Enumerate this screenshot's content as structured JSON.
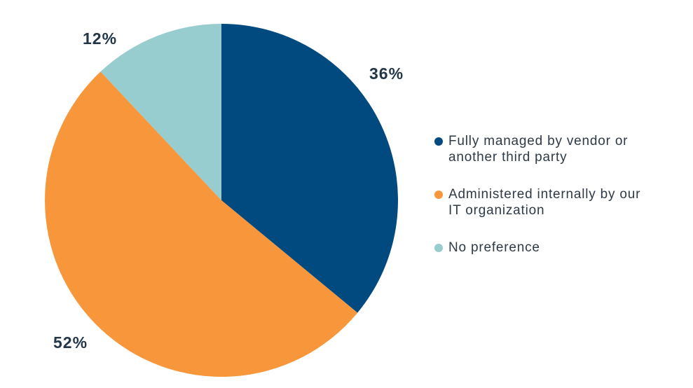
{
  "chart_data": {
    "type": "pie",
    "title": "",
    "start_angle_deg": 0,
    "direction": "clockwise",
    "legend_position": "right",
    "slices": [
      {
        "label": "Fully managed by vendor or another third party",
        "value": 36,
        "display": "36%",
        "color": "#004a7f"
      },
      {
        "label": "Administered internally by our IT organization",
        "value": 52,
        "display": "52%",
        "color": "#f7963a"
      },
      {
        "label": "No preference",
        "value": 12,
        "display": "12%",
        "color": "#97cdce"
      }
    ]
  },
  "legend": {
    "items": [
      {
        "label": "Fully managed by vendor or\nanother third party",
        "color": "#004a7f"
      },
      {
        "label": "Administered internally by our\nIT organization",
        "color": "#f7963a"
      },
      {
        "label": "No preference",
        "color": "#97cdce"
      }
    ]
  },
  "colors": {
    "percent_text": "#223649",
    "legend_text": "#2e3a47",
    "background": "#ffffff"
  }
}
